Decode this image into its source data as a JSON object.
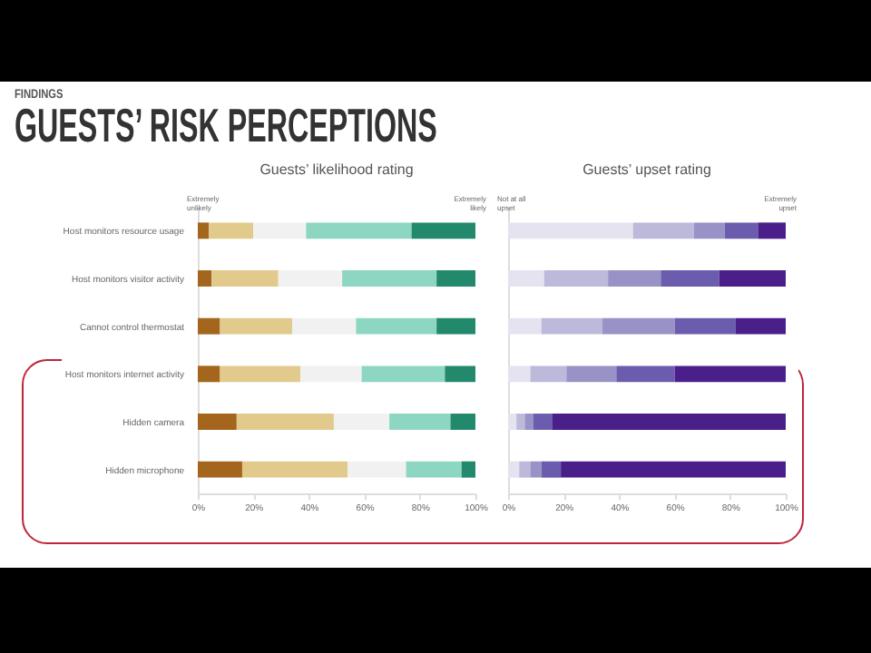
{
  "chart_data": [
    {
      "type": "other",
      "title": "GUESTS’ RISK PERCEPTIONS",
      "subtitle": "FINDINGS"
    },
    {
      "type": "bar",
      "orientation": "horizontal",
      "stacked": true,
      "title": "Guests’ likelihood rating",
      "categories": [
        "Host monitors resource usage",
        "Host monitors visitor activity",
        "Cannot control thermostat",
        "Host monitors internet activity",
        "Hidden camera",
        "Hidden microphone"
      ],
      "series": [
        {
          "color": "#a3661c",
          "values": [
            4,
            5,
            8,
            8,
            14,
            16
          ]
        },
        {
          "color": "#e2ca8c",
          "values": [
            16,
            24,
            26,
            29,
            35,
            38
          ]
        },
        {
          "color": "#f1f1f1",
          "values": [
            19,
            23,
            23,
            22,
            20,
            21
          ]
        },
        {
          "color": "#8dd7c2",
          "values": [
            38,
            34,
            29,
            30,
            22,
            20
          ]
        },
        {
          "color": "#22896d",
          "values": [
            23,
            14,
            14,
            11,
            9,
            5
          ]
        }
      ],
      "xlim": [
        0,
        100
      ],
      "xticks": [
        {
          "value": 0,
          "label": "0%"
        },
        {
          "value": 20,
          "label": "20%"
        },
        {
          "value": 40,
          "label": "40%"
        },
        {
          "value": 60,
          "label": "60%"
        },
        {
          "value": 80,
          "label": "80%"
        },
        {
          "value": 100,
          "label": "100%"
        }
      ],
      "annotations": [
        "Extremely unlikely",
        "Extremely likely"
      ]
    },
    {
      "type": "bar",
      "orientation": "horizontal",
      "stacked": true,
      "title": "Guests’ upset rating",
      "categories": [
        null,
        null,
        null,
        null,
        null,
        null
      ],
      "series": [
        {
          "color": "#e5e3f0",
          "values": [
            45,
            13,
            12,
            8,
            3,
            4
          ]
        },
        {
          "color": "#bdb9db",
          "values": [
            22,
            23,
            22,
            13,
            3,
            4
          ]
        },
        {
          "color": "#9892c6",
          "values": [
            11,
            19,
            26,
            18,
            3,
            4
          ]
        },
        {
          "color": "#6b5cad",
          "values": [
            12,
            21,
            22,
            21,
            7,
            7
          ]
        },
        {
          "color": "#4a1f8a",
          "values": [
            10,
            24,
            18,
            40,
            84,
            81
          ]
        }
      ],
      "xlim": [
        0,
        100
      ],
      "xticks": [
        {
          "value": 0,
          "label": "0%"
        },
        {
          "value": 20,
          "label": "20%"
        },
        {
          "value": 40,
          "label": "40%"
        },
        {
          "value": 60,
          "label": "60%"
        },
        {
          "value": 80,
          "label": "80%"
        },
        {
          "value": 100,
          "label": "100%"
        }
      ],
      "annotations": [
        "Not at all upset",
        "Extremely upset"
      ]
    }
  ]
}
